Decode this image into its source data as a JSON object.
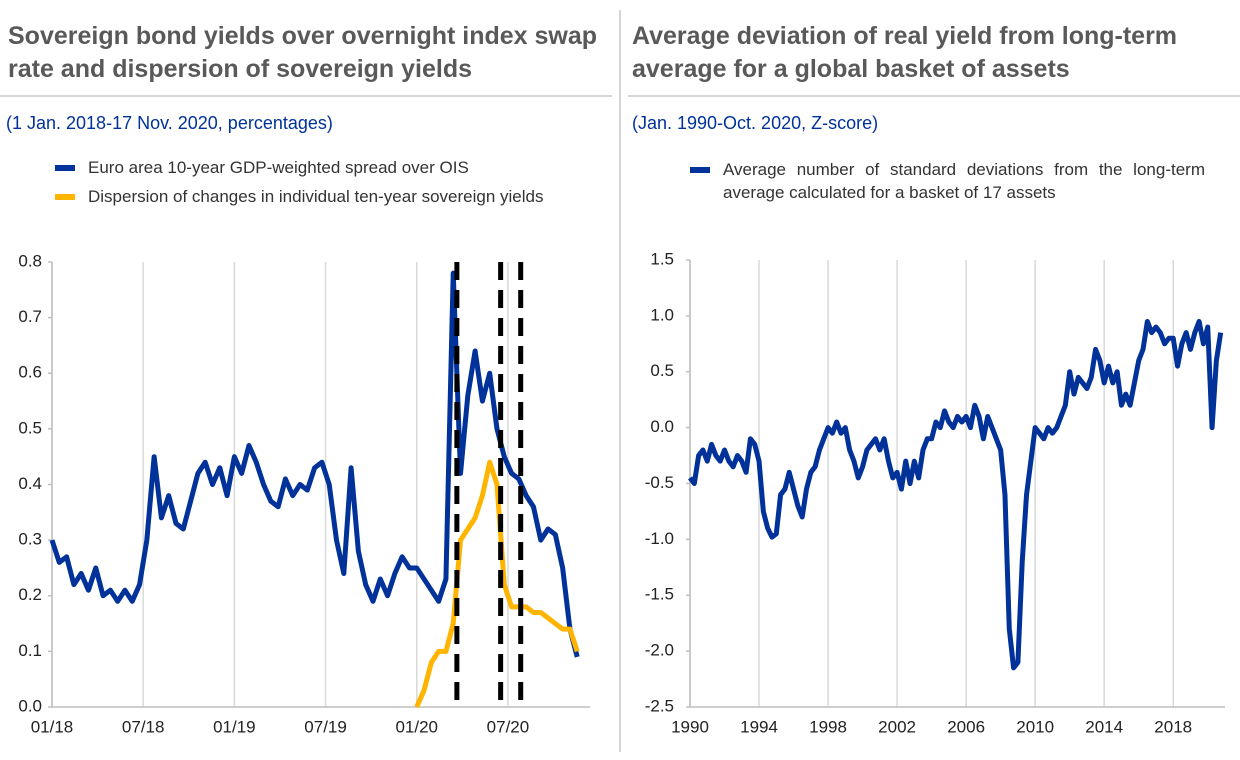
{
  "chart_data": [
    {
      "type": "line",
      "title": "Sovereign bond yields over overnight index swap rate and dispersion of sovereign yields",
      "subtitle": "(1 Jan. 2018-17 Nov. 2020, percentages)",
      "x": [
        2018.0,
        2018.04,
        2018.08,
        2018.12,
        2018.16,
        2018.2,
        2018.24,
        2018.28,
        2018.32,
        2018.36,
        2018.4,
        2018.44,
        2018.48,
        2018.52,
        2018.56,
        2018.6,
        2018.64,
        2018.68,
        2018.72,
        2018.76,
        2018.8,
        2018.84,
        2018.88,
        2018.92,
        2018.96,
        2019.0,
        2019.04,
        2019.08,
        2019.12,
        2019.16,
        2019.2,
        2019.24,
        2019.28,
        2019.32,
        2019.36,
        2019.4,
        2019.44,
        2019.48,
        2019.52,
        2019.56,
        2019.6,
        2019.64,
        2019.68,
        2019.72,
        2019.76,
        2019.8,
        2019.84,
        2019.88,
        2019.92,
        2019.96,
        2020.0,
        2020.04,
        2020.08,
        2020.12,
        2020.16,
        2020.2,
        2020.24,
        2020.28,
        2020.32,
        2020.36,
        2020.4,
        2020.44,
        2020.48,
        2020.52,
        2020.56,
        2020.6,
        2020.64,
        2020.68,
        2020.72,
        2020.76,
        2020.8,
        2020.84,
        2020.88
      ],
      "series": [
        {
          "name": "Euro area 10-year GDP-weighted spread over OIS",
          "color": "#003299",
          "values": [
            0.3,
            0.26,
            0.27,
            0.22,
            0.24,
            0.21,
            0.25,
            0.2,
            0.21,
            0.19,
            0.21,
            0.19,
            0.22,
            0.3,
            0.45,
            0.34,
            0.38,
            0.33,
            0.32,
            0.37,
            0.42,
            0.44,
            0.4,
            0.43,
            0.38,
            0.45,
            0.42,
            0.47,
            0.44,
            0.4,
            0.37,
            0.36,
            0.41,
            0.38,
            0.4,
            0.39,
            0.43,
            0.44,
            0.4,
            0.3,
            0.24,
            0.43,
            0.28,
            0.22,
            0.19,
            0.23,
            0.2,
            0.24,
            0.27,
            0.25,
            0.25,
            0.23,
            0.21,
            0.19,
            0.23,
            0.78,
            0.42,
            0.56,
            0.64,
            0.55,
            0.6,
            0.5,
            0.45,
            0.42,
            0.41,
            0.38,
            0.36,
            0.3,
            0.32,
            0.31,
            0.25,
            0.14,
            0.09
          ]
        },
        {
          "name": "Dispersion of changes in individual ten-year sovereign yields",
          "color": "#ffb400",
          "values": [
            null,
            null,
            null,
            null,
            null,
            null,
            null,
            null,
            null,
            null,
            null,
            null,
            null,
            null,
            null,
            null,
            null,
            null,
            null,
            null,
            null,
            null,
            null,
            null,
            null,
            null,
            null,
            null,
            null,
            null,
            null,
            null,
            null,
            null,
            null,
            null,
            null,
            null,
            null,
            null,
            null,
            null,
            null,
            null,
            null,
            null,
            null,
            null,
            null,
            null,
            0.0,
            0.03,
            0.08,
            0.1,
            0.1,
            0.15,
            0.3,
            0.32,
            0.34,
            0.38,
            0.44,
            0.4,
            0.22,
            0.18,
            0.18,
            0.18,
            0.17,
            0.17,
            0.16,
            0.15,
            0.14,
            0.14,
            0.1
          ]
        }
      ],
      "vlines": [
        2020.22,
        2020.46,
        2020.57
      ],
      "vline_color": "#000000",
      "xlim": [
        2018.0,
        2020.95
      ],
      "xticks": [
        {
          "value": 2018.0,
          "label": "01/18"
        },
        {
          "value": 2018.5,
          "label": "07/18"
        },
        {
          "value": 2019.0,
          "label": "01/19"
        },
        {
          "value": 2019.5,
          "label": "07/19"
        },
        {
          "value": 2020.0,
          "label": "01/20"
        },
        {
          "value": 2020.5,
          "label": "07/20"
        }
      ],
      "ylim": [
        0,
        0.8
      ],
      "yticks": [
        {
          "value": 0,
          "label": "0.0"
        },
        0.1,
        0.2,
        0.3,
        0.4,
        0.5,
        0.6,
        0.7,
        0.8
      ],
      "grid": "x"
    },
    {
      "type": "line",
      "title": "Average deviation of real yield from long-term average for a global basket of assets",
      "subtitle": "(Jan. 1990-Oct. 2020, Z-score)",
      "x": [
        1990,
        1990.25,
        1990.5,
        1990.75,
        1991,
        1991.25,
        1991.5,
        1991.75,
        1992,
        1992.25,
        1992.5,
        1992.75,
        1993,
        1993.25,
        1993.5,
        1993.75,
        1994,
        1994.25,
        1994.5,
        1994.75,
        1995,
        1995.25,
        1995.5,
        1995.75,
        1996,
        1996.25,
        1996.5,
        1996.75,
        1997,
        1997.25,
        1997.5,
        1997.75,
        1998,
        1998.25,
        1998.5,
        1998.75,
        1999,
        1999.25,
        1999.5,
        1999.75,
        2000,
        2000.25,
        2000.5,
        2000.75,
        2001,
        2001.25,
        2001.5,
        2001.75,
        2002,
        2002.25,
        2002.5,
        2002.75,
        2003,
        2003.25,
        2003.5,
        2003.75,
        2004,
        2004.25,
        2004.5,
        2004.75,
        2005,
        2005.25,
        2005.5,
        2005.75,
        2006,
        2006.25,
        2006.5,
        2006.75,
        2007,
        2007.25,
        2007.5,
        2007.75,
        2008,
        2008.25,
        2008.5,
        2008.75,
        2009,
        2009.25,
        2009.5,
        2009.75,
        2010,
        2010.25,
        2010.5,
        2010.75,
        2011,
        2011.25,
        2011.5,
        2011.75,
        2012,
        2012.25,
        2012.5,
        2012.75,
        2013,
        2013.25,
        2013.5,
        2013.75,
        2014,
        2014.25,
        2014.5,
        2014.75,
        2015,
        2015.25,
        2015.5,
        2015.75,
        2016,
        2016.25,
        2016.5,
        2016.75,
        2017,
        2017.25,
        2017.5,
        2017.75,
        2018,
        2018.25,
        2018.5,
        2018.75,
        2019,
        2019.25,
        2019.5,
        2019.75,
        2020,
        2020.25,
        2020.5,
        2020.75
      ],
      "series": [
        {
          "name": "Average number of standard deviations from the long-term average calculated for a basket of 17 assets",
          "color": "#003299",
          "values": [
            -0.45,
            -0.5,
            -0.25,
            -0.2,
            -0.3,
            -0.15,
            -0.25,
            -0.3,
            -0.2,
            -0.3,
            -0.35,
            -0.25,
            -0.3,
            -0.4,
            -0.1,
            -0.15,
            -0.3,
            -0.75,
            -0.9,
            -0.98,
            -0.95,
            -0.6,
            -0.55,
            -0.4,
            -0.55,
            -0.7,
            -0.8,
            -0.55,
            -0.4,
            -0.35,
            -0.2,
            -0.1,
            0,
            -0.05,
            0.05,
            -0.05,
            0,
            -0.2,
            -0.3,
            -0.45,
            -0.35,
            -0.2,
            -0.15,
            -0.1,
            -0.2,
            -0.1,
            -0.3,
            -0.45,
            -0.4,
            -0.55,
            -0.3,
            -0.5,
            -0.3,
            -0.45,
            -0.2,
            -0.1,
            -0.1,
            0.05,
            0,
            0.15,
            0.05,
            0,
            0.1,
            0.05,
            0.1,
            0,
            0.2,
            0.1,
            -0.1,
            0.1,
            0,
            -0.1,
            -0.2,
            -0.6,
            -1.8,
            -2.15,
            -2.1,
            -1.2,
            -0.6,
            -0.3,
            0,
            -0.05,
            -0.1,
            0,
            -0.05,
            0,
            0.1,
            0.2,
            0.5,
            0.3,
            0.45,
            0.4,
            0.35,
            0.45,
            0.7,
            0.6,
            0.4,
            0.55,
            0.4,
            0.5,
            0.2,
            0.3,
            0.2,
            0.4,
            0.6,
            0.7,
            0.95,
            0.85,
            0.9,
            0.85,
            0.75,
            0.8,
            0.8,
            0.55,
            0.75,
            0.85,
            0.7,
            0.85,
            0.95,
            0.75,
            0.9,
            0,
            0.6,
            0.85
          ]
        }
      ],
      "xlim": [
        1990,
        2021
      ],
      "xticks": [
        1990,
        1994,
        1998,
        2002,
        2006,
        2010,
        2014,
        2018
      ],
      "ylim": [
        -2.5,
        1.5
      ],
      "yticks": [
        1.5,
        {
          "value": 1,
          "label": "1.0"
        },
        0.5,
        {
          "value": 0,
          "label": "0.0"
        },
        -0.5,
        {
          "value": -1,
          "label": "-1.0"
        },
        -1.5,
        {
          "value": -2,
          "label": "-2.0"
        },
        -2.5
      ],
      "grid": "x"
    }
  ]
}
